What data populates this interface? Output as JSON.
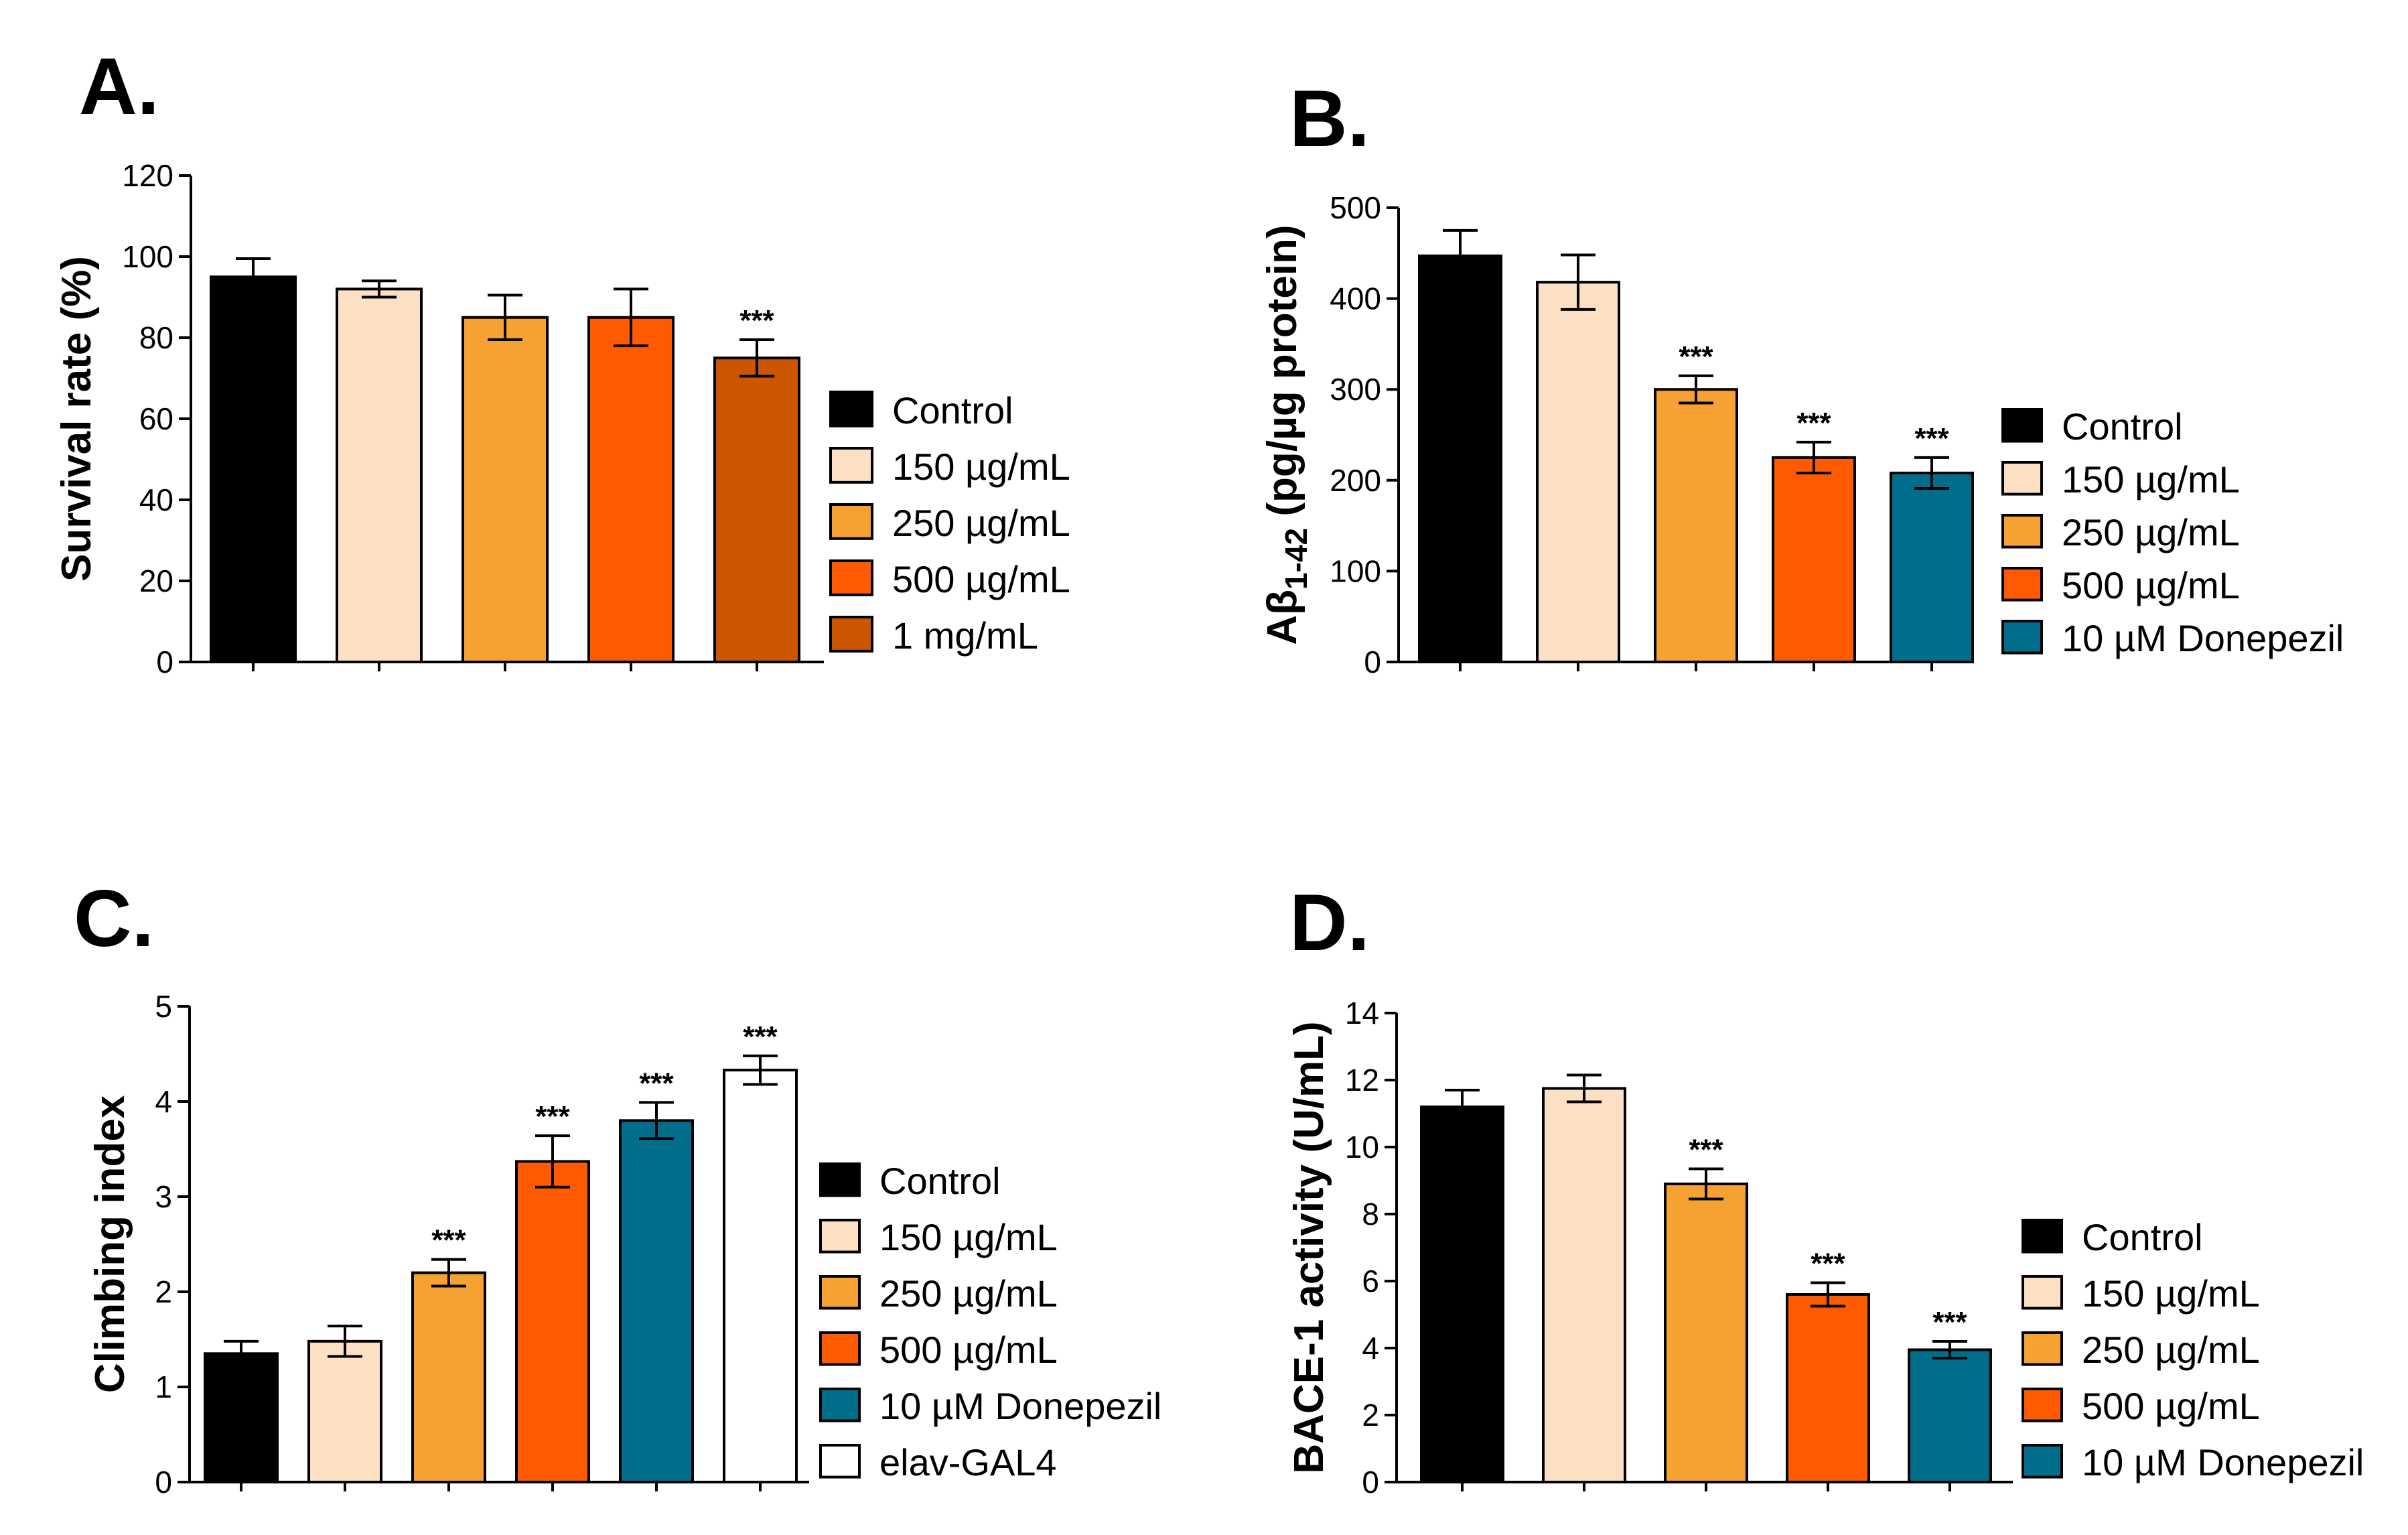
{
  "figure": {
    "colors": {
      "black": "#000000",
      "peach": "#FCE0C4",
      "orange": "#F6A233",
      "red_orange": "#FF5A00",
      "burnt": "#CC5500",
      "teal": "#006E8A",
      "white": "#FFFFFF"
    }
  },
  "chart_data": [
    {
      "panel": "A.",
      "type": "bar",
      "title": "",
      "xlabel": "",
      "ylabel": "Survival rate (%)",
      "ylim": [
        0,
        120
      ],
      "yticks": [
        0,
        20,
        40,
        60,
        80,
        100,
        120
      ],
      "categories": [
        "Control",
        "150 µg/mL",
        "250 µg/mL",
        "500 µg/mL",
        "1 mg/mL"
      ],
      "values": [
        95,
        92,
        85,
        85,
        75
      ],
      "errors": [
        4.5,
        2,
        5.5,
        7,
        4.5
      ],
      "significance": [
        "",
        "",
        "",
        "",
        "***"
      ],
      "colors": [
        "#000000",
        "#FCE0C4",
        "#F6A233",
        "#FF5A00",
        "#CC5500"
      ],
      "legend": [
        "Control",
        "150 µg/mL",
        "250 µg/mL",
        "500 µg/mL",
        "1 mg/mL"
      ]
    },
    {
      "panel": "B.",
      "type": "bar",
      "title": "",
      "xlabel": "",
      "ylabel": "Aβ1-42 (pg/µg protein)",
      "ylabel_main": "Aβ",
      "ylabel_sub": "1-42",
      "ylabel_rest": " (pg/µg protein)",
      "ylim": [
        0,
        500
      ],
      "yticks": [
        0,
        100,
        200,
        300,
        400,
        500
      ],
      "categories": [
        "Control",
        "150 µg/mL",
        "250 µg/mL",
        "500 µg/mL",
        "10 µM Donepezil"
      ],
      "values": [
        447,
        418,
        300,
        225,
        208
      ],
      "errors": [
        28,
        30,
        15,
        17,
        17
      ],
      "significance": [
        "",
        "",
        "***",
        "***",
        "***"
      ],
      "colors": [
        "#000000",
        "#FCE0C4",
        "#F6A233",
        "#FF5A00",
        "#006E8A"
      ],
      "legend": [
        "Control",
        "150 µg/mL",
        "250 µg/mL",
        "500 µg/mL",
        "10 µM Donepezil"
      ]
    },
    {
      "panel": "C.",
      "type": "bar",
      "title": "",
      "xlabel": "",
      "ylabel": "Climbing index",
      "ylim": [
        0,
        5
      ],
      "yticks": [
        0,
        1,
        2,
        3,
        4,
        5
      ],
      "categories": [
        "Control",
        "150 µg/mL",
        "250 µg/mL",
        "500 µg/mL",
        "10 µM Donepezil",
        "elav-GAL4"
      ],
      "values": [
        1.35,
        1.48,
        2.2,
        3.37,
        3.8,
        4.33
      ],
      "errors": [
        0.13,
        0.16,
        0.14,
        0.27,
        0.19,
        0.15
      ],
      "significance": [
        "",
        "",
        "***",
        "***",
        "***",
        "***"
      ],
      "colors": [
        "#000000",
        "#FCE0C4",
        "#F6A233",
        "#FF5A00",
        "#006E8A",
        "#FFFFFF"
      ],
      "legend": [
        "Control",
        "150 µg/mL",
        "250 µg/mL",
        "500 µg/mL",
        "10 µM Donepezil",
        "elav-GAL4"
      ]
    },
    {
      "panel": "D.",
      "type": "bar",
      "title": "",
      "xlabel": "",
      "ylabel": "BACE-1 activity (U/mL)",
      "ylim": [
        0,
        14
      ],
      "yticks": [
        0,
        2,
        4,
        6,
        8,
        10,
        12,
        14
      ],
      "categories": [
        "Control",
        "150 µg/mL",
        "250 µg/mL",
        "500 µg/mL",
        "10 µM Donepezil"
      ],
      "values": [
        11.2,
        11.75,
        8.9,
        5.6,
        3.95
      ],
      "errors": [
        0.5,
        0.4,
        0.45,
        0.35,
        0.25
      ],
      "significance": [
        "",
        "",
        "***",
        "***",
        "***"
      ],
      "colors": [
        "#000000",
        "#FCE0C4",
        "#F6A233",
        "#FF5A00",
        "#006E8A"
      ],
      "legend": [
        "Control",
        "150 µg/mL",
        "250 µg/mL",
        "500 µg/mL",
        "10 µM Donepezil"
      ]
    }
  ]
}
